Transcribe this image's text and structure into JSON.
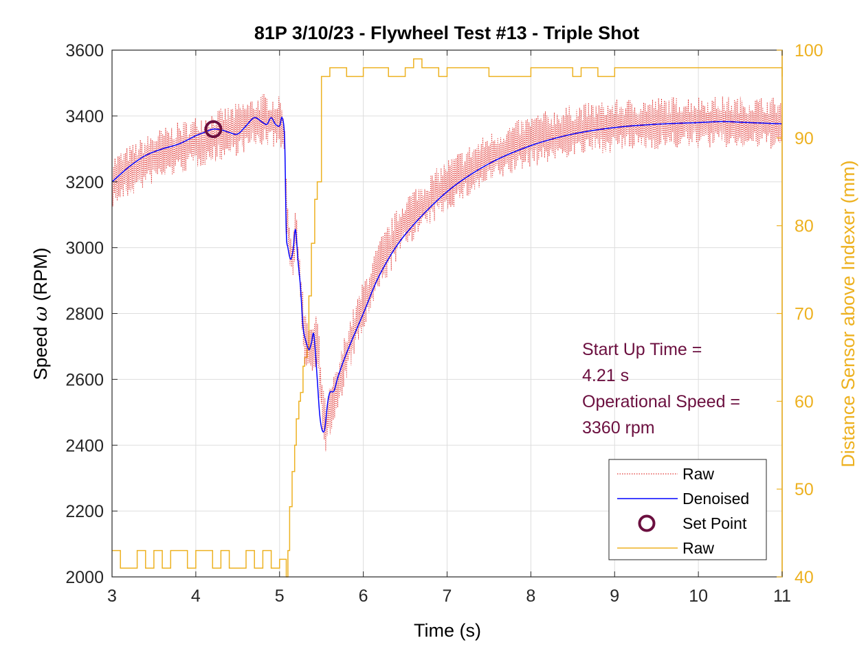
{
  "chart_data": {
    "type": "line",
    "title": "81P 3/10/23 - Flywheel Test #13 - Triple Shot",
    "xlabel": "Time (s)",
    "ylabel_prefix": "Speed ",
    "ylabel_symbol": "ω",
    "ylabel_suffix": " (RPM)",
    "ylabel_right": "Distance Sensor above Indexer (mm)",
    "xlim": [
      3,
      11
    ],
    "ylim": [
      2000,
      3600
    ],
    "ylim_right": [
      40,
      100
    ],
    "xticks": [
      3,
      4,
      5,
      6,
      7,
      8,
      9,
      10,
      11
    ],
    "yticks": [
      2000,
      2200,
      2400,
      2600,
      2800,
      3000,
      3200,
      3400,
      3600
    ],
    "yticks_right": [
      40,
      50,
      60,
      70,
      80,
      90,
      100
    ],
    "grid": true,
    "legend_position": "bottom-right",
    "series": [
      {
        "name": "Raw",
        "axis": "left",
        "style": "dotted",
        "color": "#E0322F",
        "noise_amplitude": 80,
        "x": [
          3.0,
          3.5,
          4.0,
          4.5,
          4.8,
          5.0,
          5.05,
          5.1,
          5.15,
          5.2,
          5.25,
          5.3,
          5.35,
          5.4,
          5.45,
          5.5,
          5.55,
          5.6,
          5.7,
          5.8,
          6.0,
          6.2,
          6.5,
          7.0,
          7.5,
          8.0,
          8.5,
          9.0,
          9.5,
          10.0,
          10.5,
          11.0
        ],
        "values": [
          3200,
          3275,
          3320,
          3360,
          3390,
          3380,
          3360,
          3050,
          2960,
          3050,
          2880,
          2720,
          2700,
          2690,
          2730,
          2550,
          2450,
          2500,
          2570,
          2680,
          2820,
          2950,
          3080,
          3190,
          3270,
          3325,
          3355,
          3370,
          3378,
          3382,
          3380,
          3378
        ]
      },
      {
        "name": "Denoised",
        "axis": "left",
        "style": "solid",
        "color": "#0000FF",
        "x": [
          3.0,
          3.2,
          3.4,
          3.6,
          3.8,
          4.0,
          4.1,
          4.2,
          4.3,
          4.4,
          4.5,
          4.6,
          4.7,
          4.8,
          4.85,
          4.9,
          4.95,
          5.0,
          5.03,
          5.06,
          5.08,
          5.1,
          5.13,
          5.16,
          5.19,
          5.22,
          5.25,
          5.28,
          5.31,
          5.35,
          5.38,
          5.41,
          5.45,
          5.48,
          5.51,
          5.54,
          5.57,
          5.6,
          5.65,
          5.7,
          5.8,
          6.0,
          6.2,
          6.5,
          7.0,
          7.5,
          8.0,
          8.5,
          9.0,
          9.5,
          10.0,
          10.3,
          10.6,
          11.0
        ],
        "values": [
          3200,
          3245,
          3280,
          3300,
          3315,
          3340,
          3350,
          3360,
          3358,
          3350,
          3345,
          3370,
          3395,
          3380,
          3375,
          3395,
          3375,
          3370,
          3395,
          3330,
          3050,
          3000,
          2965,
          2990,
          3055,
          2960,
          2880,
          2760,
          2720,
          2690,
          2710,
          2735,
          2600,
          2490,
          2445,
          2450,
          2520,
          2560,
          2565,
          2610,
          2680,
          2800,
          2920,
          3040,
          3170,
          3255,
          3310,
          3345,
          3365,
          3375,
          3380,
          3383,
          3380,
          3376
        ]
      },
      {
        "name": "Set Point",
        "axis": "left",
        "style": "circle-marker",
        "color": "#6B0F3F",
        "x": [
          4.21
        ],
        "values": [
          3360
        ]
      },
      {
        "name": "Raw",
        "axis": "right",
        "style": "step",
        "color": "#EDB120",
        "x": [
          3.0,
          3.1,
          3.3,
          3.4,
          3.5,
          3.6,
          3.7,
          3.9,
          4.0,
          4.2,
          4.3,
          4.4,
          4.6,
          4.7,
          4.8,
          4.9,
          5.0,
          5.08,
          5.1,
          5.12,
          5.15,
          5.18,
          5.2,
          5.23,
          5.25,
          5.28,
          5.3,
          5.33,
          5.35,
          5.38,
          5.42,
          5.45,
          5.5,
          5.6,
          5.8,
          6.0,
          6.3,
          6.5,
          6.6,
          6.7,
          6.9,
          7.0,
          7.5,
          8.0,
          8.5,
          8.6,
          8.8,
          9.0,
          10.0,
          11.0
        ],
        "values": [
          43,
          41,
          43,
          41,
          43,
          41,
          43,
          41,
          43,
          41,
          43,
          41,
          43,
          41,
          43,
          41,
          42,
          40,
          43,
          48,
          52,
          55,
          58,
          60,
          61,
          64,
          65,
          66,
          72,
          78,
          83,
          85,
          97,
          98,
          97,
          98,
          97,
          98,
          99,
          98,
          97,
          98,
          97,
          98,
          97,
          98,
          97,
          98,
          98,
          97
        ]
      }
    ],
    "set_point": {
      "x": 4.21,
      "y": 3360
    }
  },
  "annotation": {
    "line1": "Start Up Time =",
    "line2": "4.21 s",
    "line3": "Operational Speed =",
    "line4": "3360 rpm"
  },
  "legend": {
    "items": [
      "Raw",
      "Denoised",
      "Set Point",
      "Raw"
    ]
  },
  "colors": {
    "raw": "#E0322F",
    "denoised": "#0000FF",
    "set_point": "#6B0F3F",
    "sensor": "#EDB120",
    "grid": "#DDDDDD",
    "axis": "#262626"
  }
}
